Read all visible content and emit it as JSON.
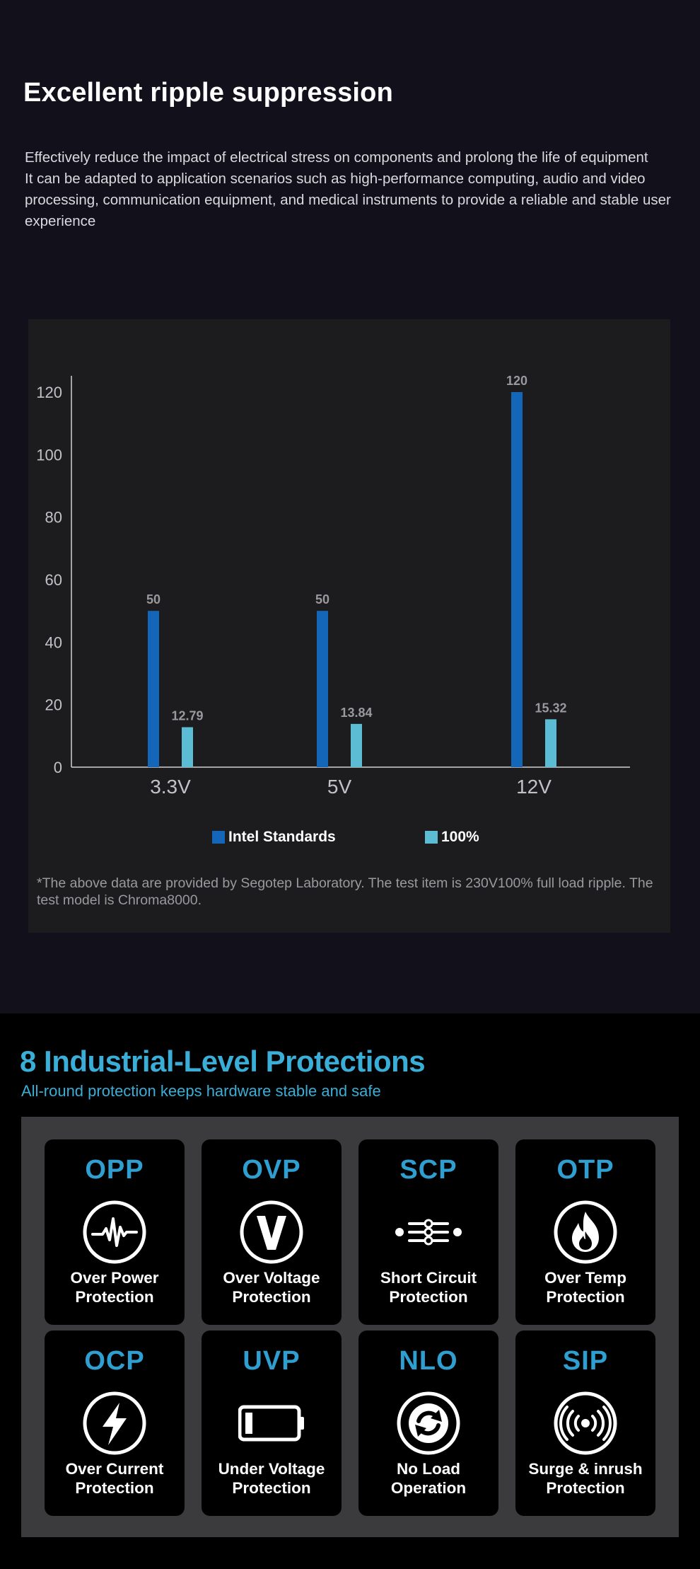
{
  "ripple": {
    "title": "Excellent ripple suppression",
    "description": [
      "Effectively reduce the impact of electrical stress on components and prolong the life of equipment",
      "It can be adapted to application scenarios such as high-performance computing, audio and video processing, communication equipment, and medical instruments to provide a reliable and stable user experience"
    ],
    "footnote": "*The above data are provided by Segotep Laboratory. The test item is 230V100% full load ripple. The test model is Chroma8000."
  },
  "chart_data": {
    "type": "bar",
    "categories": [
      "3.3V",
      "5V",
      "12V"
    ],
    "series": [
      {
        "name": "Intel Standards",
        "values": [
          50,
          50,
          120
        ],
        "labels": [
          "50",
          "50",
          "120"
        ],
        "color": "#1467b8"
      },
      {
        "name": "100%",
        "values": [
          12.79,
          13.84,
          15.32
        ],
        "labels": [
          "12.79",
          "13.84",
          "15.32"
        ],
        "color": "#5bbcd4"
      }
    ],
    "yticks": [
      "0",
      "20",
      "40",
      "60",
      "80",
      "100",
      "120"
    ],
    "ylim": [
      0,
      120
    ],
    "grid": false,
    "legend": "bottom",
    "title": "",
    "xlabel": "",
    "ylabel": ""
  },
  "protections": {
    "title": "8 Industrial-Level Protections",
    "subtitle": "All-round protection keeps hardware stable and safe",
    "items": [
      {
        "abbr": "OPP",
        "line1": "Over Power",
        "line2": "Protection",
        "icon": "pulse-icon"
      },
      {
        "abbr": "OVP",
        "line1": "Over Voltage",
        "line2": "Protection",
        "icon": "voltage-icon"
      },
      {
        "abbr": "SCP",
        "line1": "Short Circuit",
        "line2": "Protection",
        "icon": "circuit-icon"
      },
      {
        "abbr": "OTP",
        "line1": "Over Temp",
        "line2": "Protection",
        "icon": "flame-icon"
      },
      {
        "abbr": "OCP",
        "line1": "Over Current",
        "line2": "Protection",
        "icon": "lightning-icon"
      },
      {
        "abbr": "UVP",
        "line1": "Under Voltage",
        "line2": "Protection",
        "icon": "battery-icon"
      },
      {
        "abbr": "NLO",
        "line1": "No Load",
        "line2": "Operation",
        "icon": "cycle-icon"
      },
      {
        "abbr": "SIP",
        "line1": "Surge & inrush",
        "line2": "Protection",
        "icon": "surge-icon"
      }
    ],
    "colors": {
      "accent": "#2e9fd0",
      "panel": "#3b3b3d"
    }
  }
}
